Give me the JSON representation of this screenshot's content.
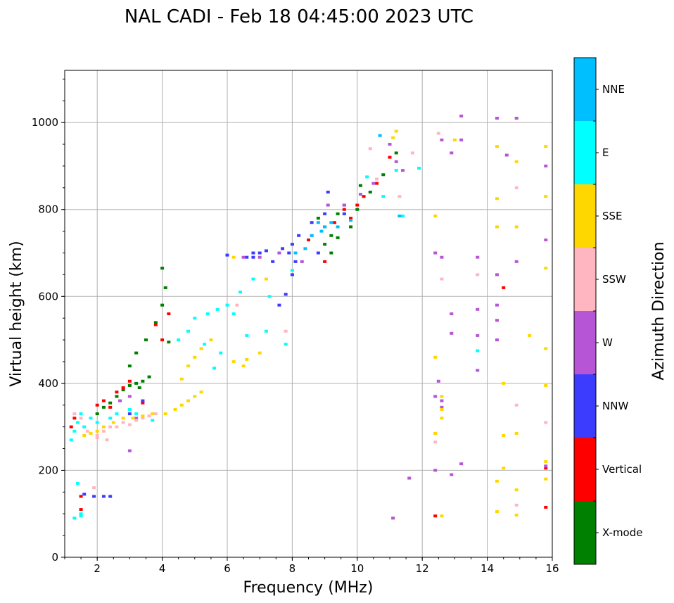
{
  "chart_data": {
    "type": "scatter",
    "title": "NAL CADI - Feb 18 04:45:00 2023 UTC",
    "xlabel": "Frequency (MHz)",
    "ylabel": "Virtual height (km)",
    "xlim": [
      1,
      16
    ],
    "ylim": [
      0,
      1120
    ],
    "xticks": [
      2,
      4,
      6,
      8,
      10,
      12,
      14,
      16
    ],
    "yticks": [
      0,
      200,
      400,
      600,
      800,
      1000
    ],
    "grid": true,
    "colorbar": {
      "label": "Azimuth Direction",
      "categories": [
        {
          "name": "X-mode",
          "color": "#008000"
        },
        {
          "name": "Vertical",
          "color": "#ff0000"
        },
        {
          "name": "NNW",
          "color": "#3c3cff"
        },
        {
          "name": "W",
          "color": "#b655d5"
        },
        {
          "name": "SSW",
          "color": "#ffb6c1"
        },
        {
          "name": "SSE",
          "color": "#ffd700"
        },
        {
          "name": "E",
          "color": "#00ffff"
        },
        {
          "name": "NNE",
          "color": "#00bfff"
        }
      ]
    },
    "series": [
      {
        "name": "X-mode",
        "points": [
          [
            2.0,
            330
          ],
          [
            2.2,
            345
          ],
          [
            2.4,
            355
          ],
          [
            2.6,
            370
          ],
          [
            2.8,
            385
          ],
          [
            3.0,
            395
          ],
          [
            3.2,
            400
          ],
          [
            3.4,
            405
          ],
          [
            3.6,
            415
          ],
          [
            3.3,
            390
          ],
          [
            3.0,
            440
          ],
          [
            3.2,
            470
          ],
          [
            3.5,
            500
          ],
          [
            3.8,
            540
          ],
          [
            4.0,
            580
          ],
          [
            4.1,
            620
          ],
          [
            4.0,
            665
          ],
          [
            4.2,
            495
          ],
          [
            8.8,
            780
          ],
          [
            9.0,
            760
          ],
          [
            9.2,
            740
          ],
          [
            9.4,
            790
          ],
          [
            9.6,
            810
          ],
          [
            9.0,
            720
          ],
          [
            9.4,
            735
          ],
          [
            9.8,
            760
          ],
          [
            10.0,
            800
          ],
          [
            10.1,
            855
          ],
          [
            10.4,
            840
          ],
          [
            10.8,
            880
          ],
          [
            11.2,
            930
          ],
          [
            9.2,
            700
          ]
        ]
      },
      {
        "name": "Vertical",
        "points": [
          [
            1.2,
            300
          ],
          [
            1.3,
            320
          ],
          [
            1.5,
            140
          ],
          [
            1.5,
            110
          ],
          [
            2.0,
            350
          ],
          [
            2.2,
            360
          ],
          [
            2.4,
            345
          ],
          [
            2.6,
            380
          ],
          [
            2.8,
            390
          ],
          [
            3.0,
            405
          ],
          [
            3.4,
            355
          ],
          [
            3.8,
            535
          ],
          [
            4.0,
            500
          ],
          [
            4.2,
            560
          ],
          [
            8.5,
            730
          ],
          [
            9.0,
            680
          ],
          [
            9.3,
            770
          ],
          [
            9.6,
            800
          ],
          [
            9.8,
            780
          ],
          [
            10.0,
            810
          ],
          [
            10.2,
            830
          ],
          [
            10.6,
            860
          ],
          [
            11.0,
            920
          ],
          [
            12.4,
            95
          ],
          [
            14.5,
            620
          ],
          [
            15.8,
            115
          ],
          [
            15.8,
            205
          ]
        ]
      },
      {
        "name": "NNW",
        "points": [
          [
            1.6,
            145
          ],
          [
            1.9,
            140
          ],
          [
            2.2,
            140
          ],
          [
            2.4,
            140
          ],
          [
            3.0,
            330
          ],
          [
            3.4,
            360
          ],
          [
            6.0,
            695
          ],
          [
            6.6,
            690
          ],
          [
            6.8,
            700
          ],
          [
            7.0,
            700
          ],
          [
            7.2,
            705
          ],
          [
            7.4,
            680
          ],
          [
            7.7,
            710
          ],
          [
            7.9,
            700
          ],
          [
            8.0,
            720
          ],
          [
            8.1,
            680
          ],
          [
            8.0,
            650
          ],
          [
            8.2,
            740
          ],
          [
            8.6,
            770
          ],
          [
            9.0,
            790
          ],
          [
            9.1,
            840
          ],
          [
            9.6,
            790
          ],
          [
            8.8,
            700
          ],
          [
            7.6,
            580
          ],
          [
            7.8,
            605
          ],
          [
            6.8,
            690
          ]
        ]
      },
      {
        "name": "W",
        "points": [
          [
            2.7,
            360
          ],
          [
            3.0,
            370
          ],
          [
            3.2,
            320
          ],
          [
            3.0,
            245
          ],
          [
            6.5,
            690
          ],
          [
            7.0,
            690
          ],
          [
            7.6,
            700
          ],
          [
            8.3,
            680
          ],
          [
            8.6,
            740
          ],
          [
            9.1,
            810
          ],
          [
            9.6,
            810
          ],
          [
            10.1,
            835
          ],
          [
            10.5,
            860
          ],
          [
            11.0,
            950
          ],
          [
            11.2,
            910
          ],
          [
            11.4,
            890
          ],
          [
            12.4,
            700
          ],
          [
            12.4,
            370
          ],
          [
            12.6,
            360
          ],
          [
            12.6,
            690
          ],
          [
            12.9,
            560
          ],
          [
            12.9,
            515
          ],
          [
            13.2,
            1015
          ],
          [
            13.2,
            960
          ],
          [
            12.9,
            930
          ],
          [
            12.6,
            960
          ],
          [
            13.7,
            690
          ],
          [
            13.7,
            570
          ],
          [
            13.7,
            510
          ],
          [
            13.7,
            430
          ],
          [
            13.2,
            215
          ],
          [
            12.9,
            190
          ],
          [
            12.4,
            200
          ],
          [
            14.3,
            1010
          ],
          [
            14.9,
            1010
          ],
          [
            14.6,
            925
          ],
          [
            14.3,
            650
          ],
          [
            14.3,
            580
          ],
          [
            14.3,
            545
          ],
          [
            14.3,
            500
          ],
          [
            14.9,
            680
          ],
          [
            15.8,
            900
          ],
          [
            15.8,
            730
          ],
          [
            15.8,
            210
          ],
          [
            11.1,
            90
          ],
          [
            11.6,
            182
          ],
          [
            12.5,
            405
          ],
          [
            12.6,
            345
          ]
        ]
      },
      {
        "name": "SSW",
        "points": [
          [
            1.3,
            330
          ],
          [
            1.5,
            320
          ],
          [
            1.7,
            290
          ],
          [
            2.0,
            280
          ],
          [
            2.2,
            290
          ],
          [
            2.4,
            300
          ],
          [
            2.6,
            300
          ],
          [
            2.8,
            310
          ],
          [
            3.0,
            305
          ],
          [
            3.2,
            315
          ],
          [
            3.4,
            320
          ],
          [
            3.6,
            325
          ],
          [
            3.8,
            330
          ],
          [
            2.0,
            275
          ],
          [
            2.3,
            270
          ],
          [
            1.9,
            160
          ],
          [
            6.3,
            580
          ],
          [
            7.8,
            520
          ],
          [
            10.4,
            940
          ],
          [
            10.6,
            870
          ],
          [
            11.3,
            830
          ],
          [
            11.7,
            930
          ],
          [
            12.5,
            975
          ],
          [
            12.6,
            640
          ],
          [
            13.7,
            650
          ],
          [
            14.9,
            850
          ],
          [
            14.9,
            350
          ],
          [
            14.9,
            120
          ],
          [
            15.8,
            310
          ],
          [
            12.4,
            285
          ],
          [
            12.4,
            265
          ]
        ]
      },
      {
        "name": "SSE",
        "points": [
          [
            1.6,
            280
          ],
          [
            1.8,
            285
          ],
          [
            2.0,
            290
          ],
          [
            2.2,
            300
          ],
          [
            2.5,
            310
          ],
          [
            2.8,
            320
          ],
          [
            3.1,
            320
          ],
          [
            3.4,
            325
          ],
          [
            3.7,
            330
          ],
          [
            4.1,
            330
          ],
          [
            4.4,
            340
          ],
          [
            4.6,
            350
          ],
          [
            4.8,
            360
          ],
          [
            5.0,
            370
          ],
          [
            5.2,
            380
          ],
          [
            4.6,
            410
          ],
          [
            4.8,
            440
          ],
          [
            5.0,
            460
          ],
          [
            5.2,
            480
          ],
          [
            5.5,
            500
          ],
          [
            6.2,
            450
          ],
          [
            6.6,
            455
          ],
          [
            7.0,
            470
          ],
          [
            6.5,
            440
          ],
          [
            6.2,
            690
          ],
          [
            7.2,
            640
          ],
          [
            11.2,
            980
          ],
          [
            11.1,
            965
          ],
          [
            12.4,
            785
          ],
          [
            12.4,
            460
          ],
          [
            12.6,
            370
          ],
          [
            12.6,
            340
          ],
          [
            12.6,
            320
          ],
          [
            12.4,
            285
          ],
          [
            12.6,
            95
          ],
          [
            13.0,
            960
          ],
          [
            14.3,
            945
          ],
          [
            14.3,
            825
          ],
          [
            14.3,
            760
          ],
          [
            14.9,
            760
          ],
          [
            14.9,
            910
          ],
          [
            14.5,
            400
          ],
          [
            14.5,
            280
          ],
          [
            14.9,
            285
          ],
          [
            14.5,
            205
          ],
          [
            14.3,
            175
          ],
          [
            14.9,
            155
          ],
          [
            14.3,
            105
          ],
          [
            14.9,
            97
          ],
          [
            15.3,
            510
          ],
          [
            15.8,
            945
          ],
          [
            15.8,
            830
          ],
          [
            15.8,
            665
          ],
          [
            15.8,
            480
          ],
          [
            15.8,
            395
          ],
          [
            15.8,
            220
          ],
          [
            15.8,
            180
          ]
        ]
      },
      {
        "name": "E",
        "points": [
          [
            1.2,
            270
          ],
          [
            1.3,
            290
          ],
          [
            1.4,
            310
          ],
          [
            1.5,
            330
          ],
          [
            1.6,
            300
          ],
          [
            1.8,
            320
          ],
          [
            2.0,
            310
          ],
          [
            2.4,
            320
          ],
          [
            2.6,
            330
          ],
          [
            3.0,
            340
          ],
          [
            3.2,
            330
          ],
          [
            1.4,
            170
          ],
          [
            1.5,
            100
          ],
          [
            1.3,
            90
          ],
          [
            1.5,
            95
          ],
          [
            3.7,
            315
          ],
          [
            5.0,
            550
          ],
          [
            5.4,
            560
          ],
          [
            5.7,
            570
          ],
          [
            6.0,
            580
          ],
          [
            6.2,
            560
          ],
          [
            4.5,
            500
          ],
          [
            5.3,
            490
          ],
          [
            5.8,
            470
          ],
          [
            6.4,
            610
          ],
          [
            6.8,
            640
          ],
          [
            7.3,
            600
          ],
          [
            7.2,
            520
          ],
          [
            6.6,
            510
          ],
          [
            8.0,
            660
          ],
          [
            7.8,
            490
          ],
          [
            10.3,
            875
          ],
          [
            10.8,
            830
          ],
          [
            11.2,
            890
          ],
          [
            11.9,
            895
          ],
          [
            11.4,
            785
          ],
          [
            13.7,
            475
          ],
          [
            5.6,
            435
          ],
          [
            4.8,
            520
          ]
        ]
      },
      {
        "name": "NNE",
        "points": [
          [
            8.8,
            770
          ],
          [
            8.9,
            750
          ],
          [
            9.0,
            760
          ],
          [
            8.6,
            740
          ],
          [
            9.2,
            770
          ],
          [
            9.4,
            760
          ],
          [
            9.8,
            775
          ],
          [
            10.7,
            970
          ],
          [
            11.3,
            785
          ],
          [
            8.1,
            700
          ],
          [
            8.4,
            710
          ]
        ]
      }
    ]
  }
}
